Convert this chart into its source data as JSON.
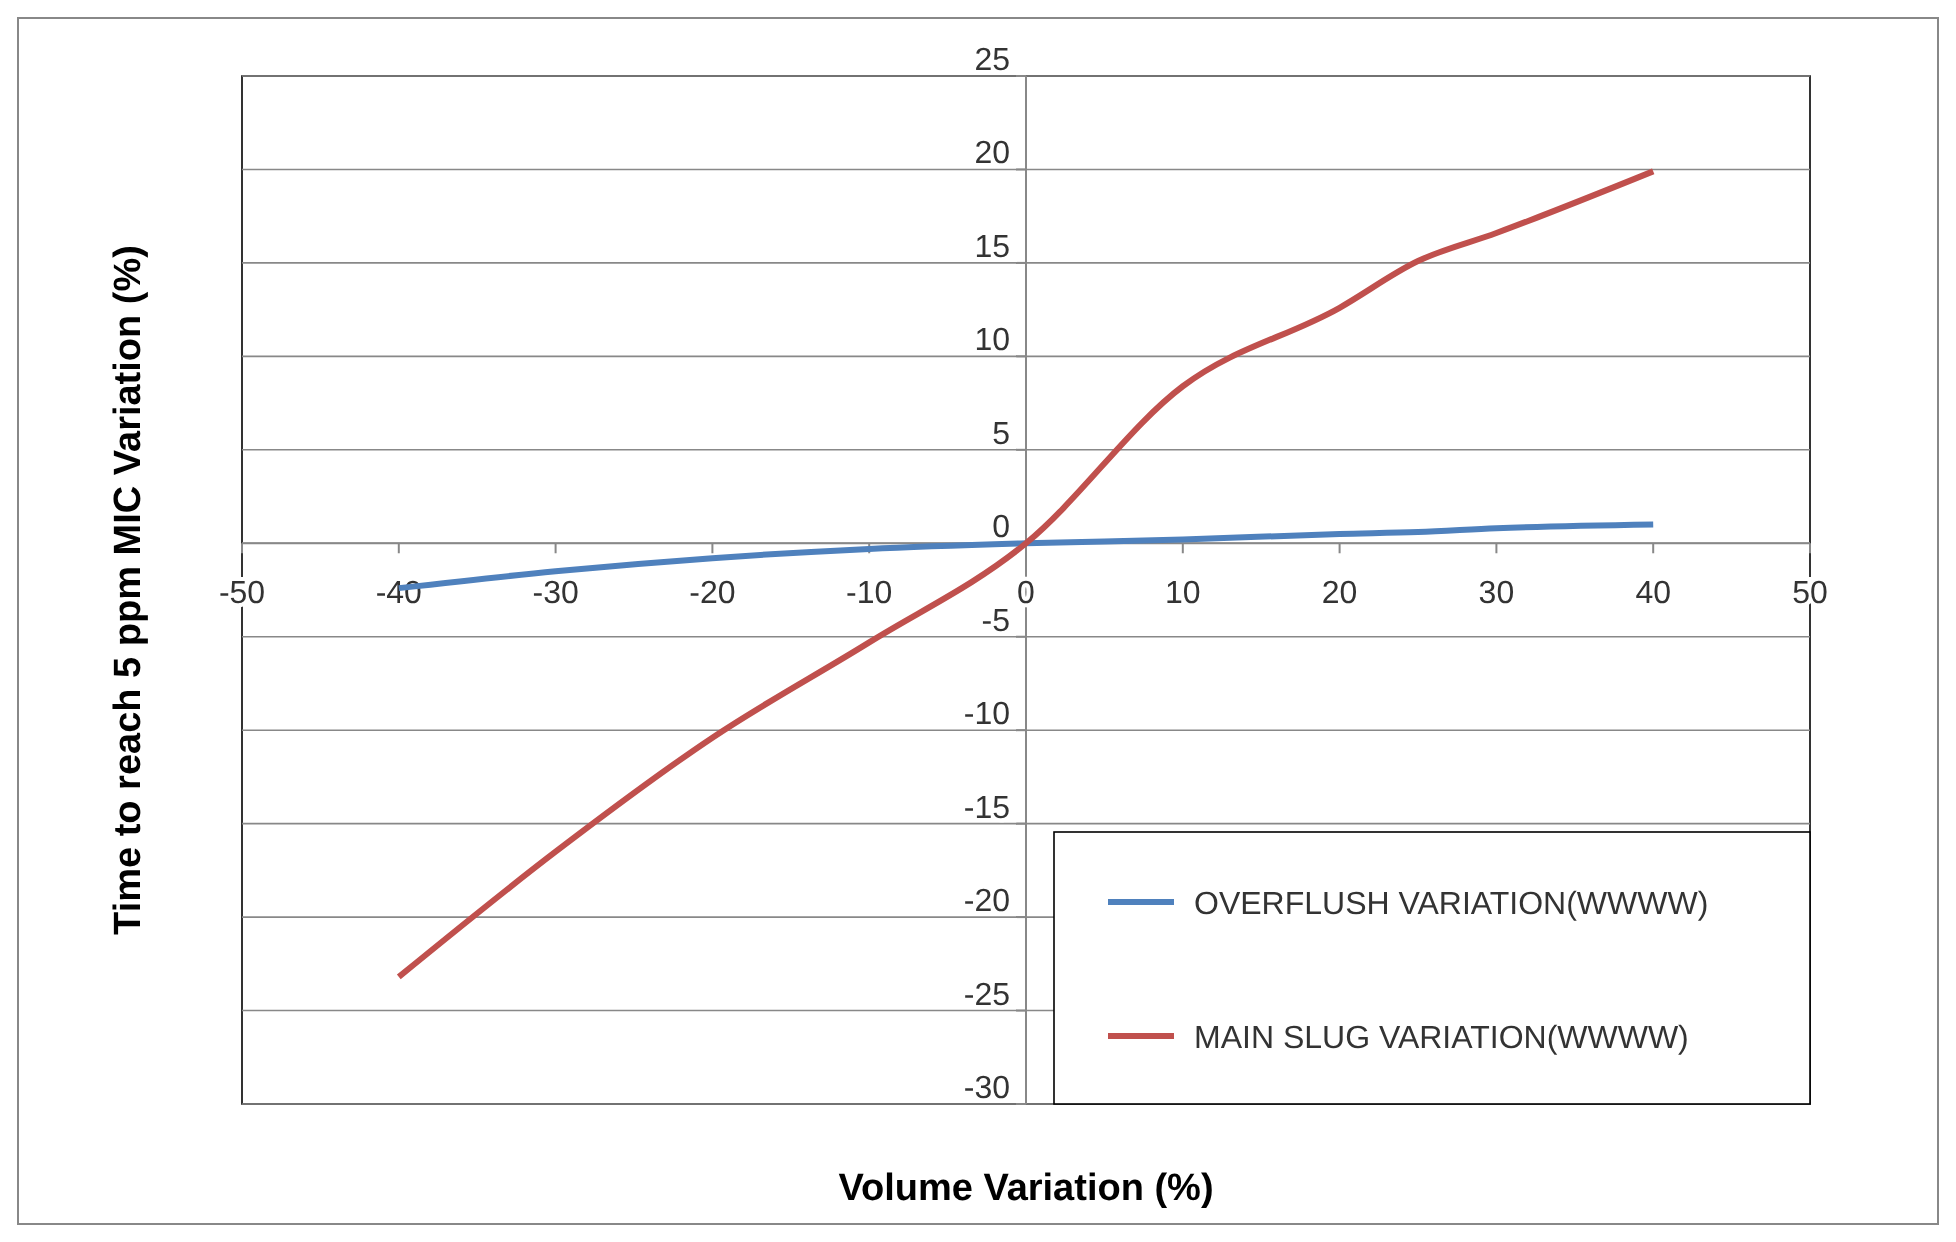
{
  "chart_data": {
    "type": "line",
    "xlabel": "Volume Variation (%)",
    "ylabel": "Time to reach 5 ppm MIC Variation (%)",
    "x": [
      -40,
      -30,
      -20,
      -10,
      0,
      10,
      20,
      25,
      30,
      40
    ],
    "series": [
      {
        "name": "OVERFLUSH VARIATION(WWWW)",
        "color": "#4f81bd",
        "values": [
          -2.4,
          -1.5,
          -0.8,
          -0.3,
          0,
          0.2,
          0.5,
          0.6,
          0.8,
          1.0
        ]
      },
      {
        "name": "MAIN SLUG VARIATION(WWWW)",
        "color": "#c0504d",
        "values": [
          -23.2,
          -16.5,
          -10.4,
          -5.3,
          0,
          8.4,
          12.6,
          15.1,
          16.6,
          19.9
        ]
      }
    ],
    "xlim": [
      -50,
      50
    ],
    "xticks": [
      -50,
      -40,
      -30,
      -20,
      -10,
      0,
      10,
      20,
      30,
      40,
      50
    ],
    "ylim": [
      -30,
      25
    ],
    "yticks": [
      -30,
      -25,
      -20,
      -15,
      -10,
      -5,
      0,
      5,
      10,
      15,
      20,
      25
    ],
    "grid": "y",
    "legend": "bottom right",
    "marker": "none",
    "line_style": "solid"
  }
}
